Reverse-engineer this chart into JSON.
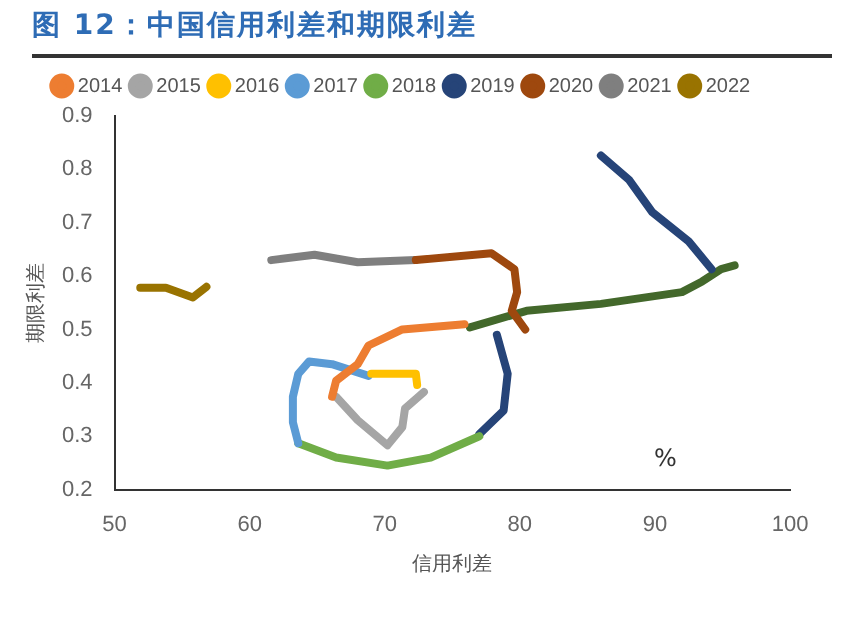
{
  "chart_data": {
    "type": "line",
    "title": "图 12：中国信用利差和期限利差",
    "xlabel": "信用利差",
    "ylabel": "期限利差",
    "annotations": [
      "%"
    ],
    "xlim": [
      50,
      100
    ],
    "xticks": [
      50,
      60,
      70,
      80,
      90,
      100
    ],
    "ylim": [
      0.2,
      0.9
    ],
    "yticks": [
      0.2,
      0.3,
      0.4,
      0.5,
      0.6,
      0.7,
      0.8,
      0.9
    ],
    "grid": false,
    "legend": "top",
    "series": [
      {
        "name": "2014",
        "color": "#ed7d31",
        "x": [
          66.1,
          66.4,
          68.0,
          68.8,
          71.3,
          75.9
        ],
        "values": [
          0.374,
          0.404,
          0.435,
          0.47,
          0.5,
          0.51
        ]
      },
      {
        "name": "2015",
        "color": "#a5a5a5",
        "x": [
          66.4,
          68.0,
          70.2,
          71.3,
          71.5,
          72.9
        ],
        "values": [
          0.374,
          0.33,
          0.283,
          0.317,
          0.352,
          0.383
        ]
      },
      {
        "name": "2016",
        "color": "#ffc000",
        "x": [
          69.0,
          72.3,
          72.4
        ],
        "values": [
          0.417,
          0.417,
          0.396
        ]
      },
      {
        "name": "2017",
        "color": "#5b9bd5",
        "x": [
          68.8,
          66.1,
          64.4,
          63.6,
          63.2,
          63.2,
          63.6
        ],
        "values": [
          0.413,
          0.435,
          0.44,
          0.417,
          0.374,
          0.326,
          0.287
        ]
      },
      {
        "name": "2018",
        "color": "#70ad47",
        "x": [
          63.6,
          66.4,
          70.2,
          73.4,
          77.0
        ],
        "values": [
          0.287,
          0.26,
          0.245,
          0.26,
          0.3
        ]
      },
      {
        "name": "2019",
        "color": "#264478",
        "x": [
          77.0,
          78.8,
          79.1,
          78.3,
          82.0,
          86.0,
          88.1,
          89.8,
          92.5,
          94.2
        ],
        "values": [
          0.304,
          0.348,
          0.417,
          0.49,
          null,
          0.826,
          0.78,
          0.72,
          0.665,
          0.613
        ]
      },
      {
        "name": "2020",
        "color": "#9e480e",
        "x": [
          72.3,
          77.9,
          79.6,
          79.8,
          79.4,
          80.4
        ],
        "values": [
          0.63,
          0.643,
          0.613,
          0.57,
          0.535,
          0.5
        ]
      },
      {
        "name": "2021",
        "color": "#7f7f7f",
        "x": [
          61.6,
          64.8,
          68.0,
          72.3
        ],
        "values": [
          0.63,
          0.64,
          0.626,
          0.63
        ]
      },
      {
        "name": "2022",
        "color": "#997300",
        "x": [
          51.9,
          53.8,
          55.8,
          56.8
        ],
        "values": [
          0.578,
          0.578,
          0.56,
          0.58
        ]
      },
      {
        "color": "#43682b",
        "x": [
          76.3,
          80.5,
          86.0,
          92.0,
          93.5,
          94.9,
          95.9
        ],
        "values": [
          0.504,
          0.535,
          0.548,
          0.57,
          0.59,
          0.613,
          0.62
        ]
      }
    ]
  }
}
